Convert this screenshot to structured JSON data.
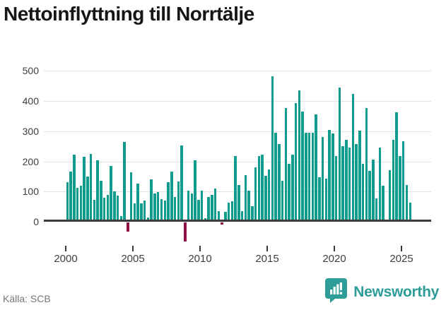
{
  "title": "Nettoinflyttning till Norrtälje",
  "source_label": "Källa: SCB",
  "branding": {
    "logo_text": "Newsworthy",
    "logo_icon": "bar-chart-badge-icon"
  },
  "colors": {
    "bar_positive": "#0f9b8e",
    "bar_negative": "#8e1045",
    "axis": "#3a3a3a",
    "grid": "#e4e4e4",
    "title_text": "#161616",
    "axis_label_text": "#404040",
    "source_text": "#767676",
    "brand_teal": "#2e9d97"
  },
  "chart_data": {
    "type": "bar",
    "title": "Nettoinflyttning till Norrtälje",
    "xlabel": "",
    "ylabel": "",
    "x_tick_labels": [
      "2000",
      "2005",
      "2010",
      "2015",
      "2020",
      "2025"
    ],
    "y_ticks": [
      0,
      100,
      200,
      300,
      400,
      500
    ],
    "ylim": [
      -75,
      520
    ],
    "grid": true,
    "frequency": "quarterly",
    "start_period": "2000-Q1",
    "values": [
      131,
      167,
      223,
      113,
      119,
      216,
      150,
      225,
      73,
      204,
      137,
      79,
      89,
      185,
      100,
      86,
      20,
      265,
      -30,
      163,
      61,
      126,
      61,
      71,
      15,
      140,
      94,
      98,
      75,
      71,
      132,
      167,
      82,
      134,
      252,
      -64,
      102,
      94,
      203,
      72,
      102,
      11,
      82,
      88,
      111,
      36,
      -8,
      34,
      63,
      67,
      217,
      122,
      36,
      155,
      104,
      52,
      181,
      218,
      222,
      152,
      173,
      483,
      296,
      258,
      136,
      377,
      192,
      223,
      394,
      436,
      365,
      296,
      295,
      294,
      357,
      147,
      280,
      143,
      305,
      293,
      218,
      445,
      250,
      272,
      246,
      423,
      258,
      302,
      192,
      377,
      169,
      207,
      77,
      246,
      119,
      0,
      171,
      271,
      363,
      217,
      267,
      121,
      63
    ]
  }
}
